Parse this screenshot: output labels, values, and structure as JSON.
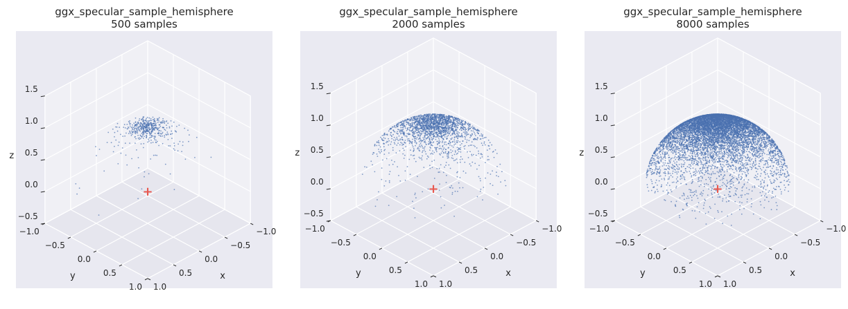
{
  "chart_data": [
    {
      "type": "scatter",
      "projection": "3d",
      "title": "ggx_specular_sample_hemisphere\n500 samples",
      "title_lines": [
        "ggx_specular_sample_hemisphere",
        "500 samples"
      ],
      "n_samples": 500,
      "point_color": "#4c72b0",
      "marker": {
        "label": "+",
        "color": "#e8584f",
        "x": 0.0,
        "y": 0.0,
        "z": 0.0
      },
      "xlabel": "x",
      "ylabel": "y",
      "zlabel": "z",
      "xlim": [
        -1.0,
        1.0
      ],
      "ylim": [
        -1.0,
        1.0
      ],
      "zlim": [
        -0.5,
        1.5
      ],
      "x_ticks": [
        "−1.0",
        "−0.5",
        "0.0",
        "0.5",
        "1.0"
      ],
      "y_ticks": [
        "−1.0",
        "−0.5",
        "0.0",
        "0.5",
        "1.0"
      ],
      "z_ticks": [
        "1.5",
        "1.0",
        "0.5",
        "0.0",
        "−0.5"
      ],
      "distribution": {
        "alpha": 0.2,
        "radius": 1.0,
        "seed": 17
      },
      "grid": true,
      "background": "#eaeaf2"
    },
    {
      "type": "scatter",
      "projection": "3d",
      "title": "ggx_specular_sample_hemisphere\n2000 samples",
      "title_lines": [
        "ggx_specular_sample_hemisphere",
        "2000 samples"
      ],
      "n_samples": 2000,
      "point_color": "#4c72b0",
      "marker": {
        "label": "+",
        "color": "#e8584f",
        "x": 0.0,
        "y": 0.0,
        "z": 0.0
      },
      "xlabel": "x",
      "ylabel": "y",
      "zlabel": "z",
      "xlim": [
        -1.0,
        1.0
      ],
      "ylim": [
        -1.0,
        1.0
      ],
      "zlim": [
        -0.5,
        1.5
      ],
      "x_ticks": [
        "−1.0",
        "−0.5",
        "0.0",
        "0.5",
        "1.0"
      ],
      "y_ticks": [
        "−1.0",
        "−0.5",
        "0.0",
        "0.5",
        "1.0"
      ],
      "z_ticks": [
        "1.5",
        "1.0",
        "0.5",
        "0.0",
        "−0.5"
      ],
      "distribution": {
        "alpha": 0.35,
        "radius": 1.0,
        "seed": 29
      },
      "grid": true,
      "background": "#eaeaf2"
    },
    {
      "type": "scatter",
      "projection": "3d",
      "title": "ggx_specular_sample_hemisphere\n8000 samples",
      "title_lines": [
        "ggx_specular_sample_hemisphere",
        "8000 samples"
      ],
      "n_samples": 8000,
      "point_color": "#4c72b0",
      "marker": {
        "label": "+",
        "color": "#e8584f",
        "x": 0.0,
        "y": 0.0,
        "z": 0.0
      },
      "xlabel": "x",
      "ylabel": "y",
      "zlabel": "z",
      "xlim": [
        -1.0,
        1.0
      ],
      "ylim": [
        -1.0,
        1.0
      ],
      "zlim": [
        -0.5,
        1.5
      ],
      "x_ticks": [
        "−1.0",
        "−0.5",
        "0.0",
        "0.5",
        "1.0"
      ],
      "y_ticks": [
        "−1.0",
        "−0.5",
        "0.0",
        "0.5",
        "1.0"
      ],
      "z_ticks": [
        "1.5",
        "1.0",
        "0.5",
        "0.0",
        "−0.5"
      ],
      "distribution": {
        "alpha": 0.5,
        "radius": 1.0,
        "seed": 43
      },
      "grid": true,
      "background": "#eaeaf2"
    }
  ]
}
